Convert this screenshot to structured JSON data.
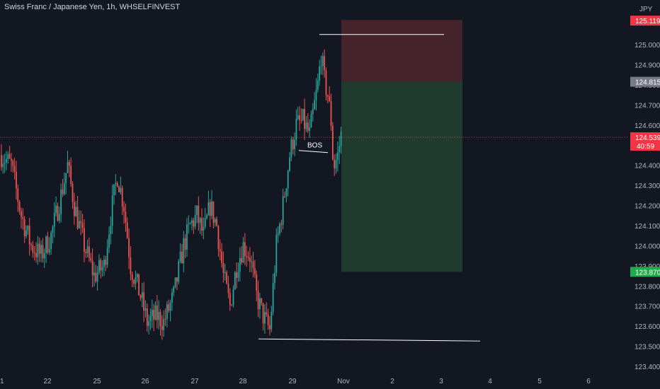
{
  "header": {
    "title": "Swiss Franc / Japanese Yen, 1h, WHSELFINVEST",
    "currency": "JPY"
  },
  "colors": {
    "background": "#131722",
    "up": "#26a69a",
    "down": "#ef5350",
    "stop_zone": "#4a262b",
    "target_zone": "#1f3d2e",
    "axis_text": "#b2b5be",
    "current_price_line": "#ef5350",
    "drawing_line": "#ffffff"
  },
  "chart_data": {
    "type": "candlestick",
    "title": "Swiss Franc / Japanese Yen, 1h, WHSELFINVEST",
    "ylim": [
      123.38,
      125.2
    ],
    "y_ticks": [
      125.0,
      124.9,
      124.8,
      124.7,
      124.6,
      124.5,
      124.4,
      124.3,
      124.2,
      124.1,
      124.0,
      123.9,
      123.8,
      123.7,
      123.6,
      123.5,
      123.4
    ],
    "x_tick_labels": [
      "1",
      "22",
      "25",
      "26",
      "27",
      "28",
      "29",
      "Nov",
      "2",
      "3",
      "4",
      "5",
      "6"
    ],
    "price_labels": {
      "stop": "125.119",
      "entry": "124.815",
      "current": "124.539",
      "countdown": "40:59",
      "target": "123.870"
    },
    "levels": {
      "stop": 125.119,
      "entry": 124.815,
      "current": 124.539,
      "target": 123.87
    },
    "annotations": [
      {
        "text": "BOS",
        "price": 124.47
      }
    ],
    "swing_high_line": 125.05,
    "swing_low_line": 123.54,
    "waypoints": [
      [
        0,
        124.45
      ],
      [
        6,
        124.4
      ],
      [
        12,
        124.15
      ],
      [
        18,
        124.0
      ],
      [
        24,
        123.95
      ],
      [
        30,
        124.05
      ],
      [
        36,
        124.25
      ],
      [
        40,
        124.4
      ],
      [
        44,
        124.2
      ],
      [
        50,
        124.0
      ],
      [
        56,
        123.85
      ],
      [
        62,
        123.9
      ],
      [
        66,
        124.15
      ],
      [
        70,
        124.35
      ],
      [
        74,
        124.2
      ],
      [
        78,
        123.9
      ],
      [
        84,
        123.75
      ],
      [
        88,
        123.62
      ],
      [
        94,
        123.65
      ],
      [
        98,
        123.62
      ],
      [
        104,
        123.75
      ],
      [
        110,
        124.0
      ],
      [
        114,
        124.1
      ],
      [
        118,
        124.15
      ],
      [
        122,
        124.05
      ],
      [
        126,
        124.2
      ],
      [
        130,
        124.1
      ],
      [
        134,
        123.85
      ],
      [
        138,
        123.7
      ],
      [
        142,
        123.9
      ],
      [
        146,
        124.0
      ],
      [
        150,
        123.95
      ],
      [
        154,
        123.75
      ],
      [
        158,
        123.65
      ],
      [
        162,
        123.58
      ],
      [
        166,
        124.0
      ],
      [
        170,
        124.2
      ],
      [
        174,
        124.45
      ],
      [
        178,
        124.6
      ],
      [
        182,
        124.62
      ],
      [
        186,
        124.55
      ],
      [
        188,
        124.65
      ],
      [
        191,
        124.8
      ],
      [
        193,
        124.95
      ],
      [
        195,
        124.82
      ],
      [
        197,
        124.75
      ],
      [
        199,
        124.62
      ],
      [
        200,
        124.45
      ],
      [
        201,
        124.4
      ],
      [
        203,
        124.45
      ],
      [
        205,
        124.55
      ]
    ]
  }
}
